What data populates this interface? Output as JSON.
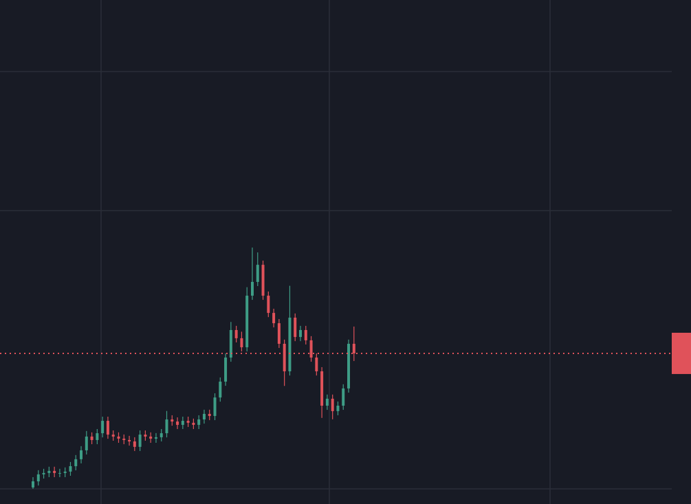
{
  "chart_data": {
    "type": "candlestick",
    "open": [
      1.0,
      5.4,
      10.4,
      11.4,
      12.9,
      11.4,
      11.4,
      12.4,
      16.3,
      21.3,
      27.7,
      37.6,
      35.1,
      40.0,
      48.9,
      39.0,
      37.6,
      36.1,
      35.1,
      34.1,
      30.2,
      39.0,
      37.6,
      36.1,
      37.1,
      40.0,
      49.9,
      48.4,
      46.0,
      48.9,
      47.5,
      46.0,
      49.9,
      53.9,
      52.4,
      65.7,
      77.1,
      94.4,
      114.2,
      108.3,
      101.8,
      138.9,
      148.8,
      161.1,
      138.9,
      126.5,
      119.1,
      104.3,
      84.5,
      123.1,
      109.2,
      114.2,
      106.8,
      94.4,
      84.5,
      59.8,
      64.8,
      55.9,
      59.8,
      72.2,
      104.3
    ],
    "high": [
      8.4,
      13.4,
      14.4,
      15.9,
      15.9,
      14.4,
      15.4,
      19.3,
      24.3,
      30.7,
      41.6,
      40.6,
      43,
      51.9,
      51.9,
      42,
      40.6,
      39.1,
      38.1,
      37.1,
      42,
      42,
      40.6,
      40.1,
      43,
      56,
      52.9,
      51.4,
      51.9,
      51.9,
      50.5,
      52.9,
      56.9,
      56.9,
      68.7,
      80.1,
      97.4,
      120,
      117.2,
      113,
      145,
      173.5,
      170,
      164.1,
      141.9,
      129.5,
      122.1,
      107.3,
      146,
      126.1,
      117.2,
      117.2,
      109.8,
      97.4,
      87.5,
      67.8,
      67.8,
      62.8,
      75.2,
      107.3,
      116.7
    ],
    "low": [
      0,
      2.4,
      7.4,
      8.4,
      8.4,
      8.4,
      8.4,
      9.4,
      13.3,
      18.3,
      24.7,
      32.1,
      32.1,
      37,
      36,
      34.6,
      33.1,
      32.1,
      31.1,
      27.2,
      27.2,
      34.6,
      33.1,
      33.1,
      34.1,
      37,
      45.4,
      43,
      43,
      44.5,
      43,
      43,
      46.9,
      49.4,
      49.4,
      62.7,
      74.1,
      91.4,
      105.3,
      98.8,
      98.8,
      135.9,
      145.8,
      135.9,
      123.5,
      116.1,
      101.3,
      74,
      81.5,
      106.2,
      106.2,
      103.8,
      91.4,
      81.5,
      51,
      56.8,
      50,
      52.9,
      56.8,
      69.2,
      91.9
    ],
    "close": [
      5.4,
      10.4,
      11.4,
      12.9,
      11.4,
      11.4,
      12.4,
      16.3,
      21.3,
      27.7,
      37.6,
      35.1,
      40.0,
      48.9,
      39.0,
      37.6,
      36.1,
      35.1,
      34.1,
      30.2,
      39.0,
      37.6,
      36.1,
      37.1,
      40.0,
      49.9,
      48.4,
      46.0,
      48.9,
      47.5,
      46.0,
      49.9,
      53.9,
      52.4,
      65.7,
      77.1,
      94.4,
      114.2,
      108.3,
      101.8,
      138.9,
      148.8,
      161.1,
      138.9,
      126.5,
      119.1,
      104.3,
      84.5,
      123.1,
      109.2,
      114.2,
      106.8,
      94.4,
      84.5,
      59.8,
      64.8,
      55.9,
      59.8,
      72.2,
      104.3,
      97.4
    ],
    "up_color": "#3e9d86",
    "down_color": "#e0525a",
    "ylim": [
      -10.9,
      351.5
    ],
    "yticks": [
      0,
      200,
      300
    ],
    "grid": true
  }
}
